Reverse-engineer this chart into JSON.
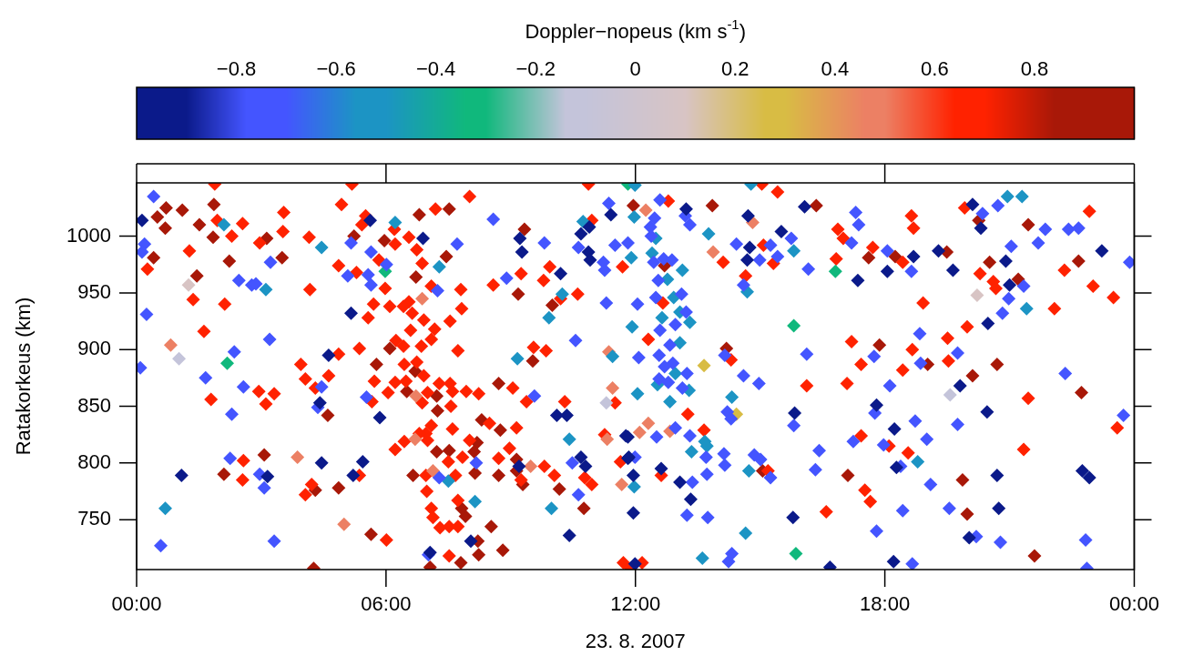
{
  "chart_data": {
    "type": "scatter",
    "xlabel": "23. 8. 2007",
    "ylabel": "Ratakorkeus (km)",
    "clabel": "Doppler−nopeus (km s$^{-1}$)",
    "xlim": [
      0,
      24
    ],
    "xticks": [
      {
        "value": 0,
        "label": "00:00"
      },
      {
        "value": 6,
        "label": "06:00"
      },
      {
        "value": 12,
        "label": "12:00"
      },
      {
        "value": 18,
        "label": "18:00"
      },
      {
        "value": 24,
        "label": "00:00"
      }
    ],
    "ylim": [
      706,
      1047
    ],
    "yticks": [
      750,
      800,
      850,
      900,
      950,
      1000
    ],
    "clim": [
      -1,
      1
    ],
    "cticks": [
      {
        "value": -0.8,
        "label": "−0.8"
      },
      {
        "value": -0.6,
        "label": "−0.6"
      },
      {
        "value": -0.4,
        "label": "−0.4"
      },
      {
        "value": -0.2,
        "label": "−0.2"
      },
      {
        "value": 0,
        "label": "0"
      },
      {
        "value": 0.2,
        "label": "0.2"
      },
      {
        "value": 0.4,
        "label": "0.4"
      },
      {
        "value": 0.6,
        "label": "0.6"
      },
      {
        "value": 0.8,
        "label": "0.8"
      }
    ],
    "marker": "diamond",
    "series": [
      {
        "x": [
          0.13,
          1.08,
          3.15,
          5.62,
          6.89,
          5.16,
          4.62,
          4.41,
          5.85,
          4.45,
          5.44,
          5.21,
          7.06,
          9.22,
          9.27,
          10.2,
          10.89,
          10.69,
          10.87,
          10.91,
          11.41,
          10.11,
          10.35,
          11.77,
          9.2,
          10.69,
          10.8,
          11.82,
          8.04,
          10.41,
          13.22,
          14.71,
          15.51,
          14.75,
          14.69,
          15.83,
          11.82,
          11.84,
          12.62,
          11.95,
          13.07,
          13.33,
          11.95,
          15.79,
          11.99,
          16.07,
          18.69,
          19.29,
          19.64,
          17.35,
          18.06,
          19.81,
          17.8,
          18.23,
          18.28,
          18.21,
          16.68,
          20.11,
          20.31,
          23.22,
          20.91,
          21.0,
          20.48,
          20.46,
          20.7,
          22.75,
          22.92,
          20.74,
          20.03
        ],
        "values": [
          1014,
          789,
          788,
          1014,
          998,
          932,
          895,
          853,
          840,
          800,
          801,
          789,
          721,
          998,
          986,
          967,
          1008,
          1002,
          986,
          979,
          1019,
          842,
          842,
          824,
          797,
          805,
          797,
          804,
          731,
          736,
          1024,
          1018,
          1004,
          990,
          979,
          844,
          823,
          805,
          795,
          789,
          783,
          768,
          756,
          752,
          711,
          1026,
          982,
          987,
          970,
          961,
          969,
          868,
          851,
          830,
          796,
          713,
          708,
          1028,
          1007,
          987,
          978,
          957,
          923,
          845,
          789,
          793,
          787,
          760,
          734
        ],
        "cvalues": [
          -0.9,
          -0.9,
          -0.9,
          -0.9,
          -0.9,
          -0.9,
          -0.9,
          -0.9,
          -0.9,
          -0.9,
          -0.9,
          -0.9,
          -0.9,
          -0.9,
          -0.9,
          -0.9,
          -0.9,
          -0.9,
          -0.9,
          -0.9,
          -0.9,
          -0.9,
          -0.9,
          -0.9,
          -0.9,
          -0.9,
          -0.9,
          -0.9,
          -0.9,
          -0.9,
          -0.9,
          -0.9,
          -0.9,
          -0.9,
          -0.9,
          -0.9,
          -0.9,
          -0.9,
          -0.9,
          -0.9,
          -0.9,
          -0.9,
          -0.9,
          -0.9,
          -0.9,
          -0.9,
          -0.9,
          -0.9,
          -0.9,
          -0.9,
          -0.9,
          -0.9,
          -0.9,
          -0.9,
          -0.9,
          -0.9,
          -0.9,
          -0.9,
          -0.9,
          -0.9,
          -0.9,
          -0.9,
          -0.9,
          -0.9,
          -0.9,
          -0.9,
          -0.9,
          -0.9,
          -0.9
        ]
      },
      {
        "x": [
          0.41,
          0.19,
          0.13,
          3.22,
          2.46,
          2.77,
          2.87,
          0.24,
          3.2,
          2.35,
          0.09,
          1.66,
          2.57,
          2.29,
          2.25,
          2.96,
          3.07,
          0.58,
          3.31,
          5.16,
          7.71,
          5.64,
          6.01,
          5.08,
          5.57,
          5.64,
          7.24,
          4.45,
          4.36,
          5.53,
          7.28,
          7.02,
          8.58,
          9.81,
          8.9,
          10.63,
          11.23,
          11.26,
          11.36,
          11.51,
          11.82,
          11.3,
          10.56,
          9.57,
          8.17,
          10.48,
          10.63,
          12.59,
          12.46,
          13.2,
          13.31,
          12.36,
          12.38,
          15.75,
          14.43,
          14.99,
          15.25,
          15.42,
          14.6,
          12.44,
          12.68,
          12.88,
          12.55,
          12.49,
          13.11,
          12.05,
          13.22,
          12.96,
          12.59,
          12.83,
          12.57,
          12.08,
          12.7,
          12.9,
          13.24,
          12.57,
          12.79,
          13.13,
          14.15,
          14.6,
          14.97,
          14.21,
          14.3,
          15.81,
          12.51,
          12.96,
          13.31,
          13.7,
          14.13,
          14.15,
          14.86,
          15.01,
          15.25,
          11.99,
          13.37,
          13.72,
          13.24,
          13.74,
          14.24,
          14.32,
          17.3,
          17.37,
          17.2,
          18.06,
          16.16,
          18.64,
          18.84,
          16.12,
          17.74,
          18.86,
          19.75,
          18.12,
          17.76,
          18.73,
          19.75,
          17.24,
          17.97,
          19.01,
          16.42,
          16.33,
          18.38,
          19.1,
          18.43,
          19.55,
          17.8,
          18.66,
          20.35,
          20.72,
          21.86,
          22.42,
          22.66,
          21.04,
          21.69,
          23.89,
          21.34,
          20.98,
          20.83,
          22.34,
          23.74,
          20.2,
          20.78,
          22.83,
          22.86
        ],
        "values": [
          1035,
          993,
          986,
          977,
          961,
          957,
          958,
          931,
          909,
          898,
          884,
          875,
          867,
          843,
          804,
          790,
          778,
          727,
          731,
          994,
          993,
          986,
          975,
          965,
          966,
          957,
          952,
          867,
          849,
          858,
          787,
          719,
          1015,
          994,
          963,
          990,
          977,
          970,
          1029,
          992,
          994,
          941,
          908,
          859,
          800,
          800,
          772,
          1032,
          1016,
          1018,
          1010,
          1008,
          1000,
          998,
          993,
          979,
          992,
          982,
          957,
          977,
          980,
          979,
          961,
          946,
          949,
          940,
          933,
          922,
          917,
          904,
          895,
          893,
          885,
          888,
          879,
          874,
          871,
          866,
          895,
          877,
          870,
          845,
          839,
          833,
          823,
          831,
          824,
          805,
          808,
          798,
          807,
          803,
          787,
          805,
          783,
          790,
          754,
          752,
          713,
          720,
          1021,
          1010,
          994,
          987,
          971,
          969,
          914,
          896,
          894,
          888,
          897,
          868,
          844,
          837,
          834,
          819,
          816,
          821,
          811,
          794,
          797,
          781,
          758,
          760,
          740,
          711,
          1020,
          1027,
          1006,
          1006,
          1007,
          991,
          994,
          977,
          956,
          945,
          932,
          879,
          842,
          735,
          730,
          732,
          707
        ],
        "cvalues": [
          -0.7,
          -0.7,
          -0.7,
          -0.7,
          -0.7,
          -0.7,
          -0.7,
          -0.7,
          -0.7,
          -0.7,
          -0.7,
          -0.7,
          -0.7,
          -0.7,
          -0.7,
          -0.7,
          -0.7,
          -0.7,
          -0.7,
          -0.7,
          -0.7,
          -0.7,
          -0.7,
          -0.7,
          -0.7,
          -0.7,
          -0.7,
          -0.7,
          -0.7,
          -0.7,
          -0.7,
          -0.7,
          -0.7,
          -0.7,
          -0.7,
          -0.7,
          -0.7,
          -0.7,
          -0.7,
          -0.7,
          -0.7,
          -0.7,
          -0.7,
          -0.7,
          -0.7,
          -0.7,
          -0.7,
          -0.7,
          -0.7,
          -0.7,
          -0.7,
          -0.7,
          -0.7,
          -0.7,
          -0.7,
          -0.7,
          -0.7,
          -0.7,
          -0.7,
          -0.7,
          -0.7,
          -0.7,
          -0.7,
          -0.7,
          -0.7,
          -0.7,
          -0.7,
          -0.7,
          -0.7,
          -0.7,
          -0.7,
          -0.7,
          -0.7,
          -0.7,
          -0.7,
          -0.7,
          -0.7,
          -0.7,
          -0.7,
          -0.7,
          -0.7,
          -0.7,
          -0.7,
          -0.7,
          -0.7,
          -0.7,
          -0.7,
          -0.7,
          -0.7,
          -0.7,
          -0.7,
          -0.7,
          -0.7,
          -0.7,
          -0.7,
          -0.7,
          -0.7,
          -0.7,
          -0.7,
          -0.7,
          -0.7,
          -0.7,
          -0.7,
          -0.7,
          -0.7,
          -0.7,
          -0.7,
          -0.7,
          -0.7,
          -0.7,
          -0.7,
          -0.7,
          -0.7,
          -0.7,
          -0.7,
          -0.7,
          -0.7,
          -0.7,
          -0.7,
          -0.7,
          -0.7,
          -0.7,
          -0.7,
          -0.7,
          -0.7,
          -0.7,
          -0.7,
          -0.7,
          -0.7,
          -0.7,
          -0.7,
          -0.7,
          -0.7,
          -0.7,
          -0.7,
          -0.7,
          -0.7,
          -0.7,
          -0.7,
          -0.7,
          -0.7,
          -0.7,
          -0.7
        ]
      },
      {
        "x": [
          2.1,
          3.11,
          0.69,
          6.22,
          4.45,
          7.28,
          7.5,
          10.24,
          9.92,
          10.74,
          9.16,
          11.45,
          10.41,
          8.14,
          9.98,
          11.99,
          14.78,
          11.97,
          12.49,
          13.76,
          15.81,
          14.69,
          11.9,
          12.4,
          13.13,
          12.77,
          12.92,
          13.07,
          12.64,
          13.31,
          11.92,
          13.07,
          12.96,
          12.53,
          13.29,
          12.83,
          12.05,
          14.32,
          13.67,
          13.72,
          13.35,
          14.73,
          11.97,
          14.65,
          13.61,
          18.79,
          20.95,
          21.3,
          21.41
        ],
        "values": [
          1010,
          953,
          760,
          1012,
          990,
          973,
          784,
          949,
          928,
          1013,
          892,
          894,
          821,
          766,
          760,
          1045,
          1046,
          1017,
          998,
          1002,
          987,
          951,
          981,
          985,
          970,
          962,
          946,
          933,
          928,
          924,
          920,
          906,
          879,
          869,
          864,
          854,
          861,
          858,
          819,
          815,
          810,
          793,
          779,
          738,
          716,
          801,
          1035,
          1035,
          936
        ],
        "cvalues": [
          -0.5,
          -0.5,
          -0.5,
          -0.5,
          -0.5,
          -0.5,
          -0.5,
          -0.5,
          -0.5,
          -0.5,
          -0.5,
          -0.5,
          -0.5,
          -0.5,
          -0.5,
          -0.5,
          -0.5,
          -0.5,
          -0.5,
          -0.5,
          -0.5,
          -0.5,
          -0.5,
          -0.5,
          -0.5,
          -0.5,
          -0.5,
          -0.5,
          -0.5,
          -0.5,
          -0.5,
          -0.5,
          -0.5,
          -0.5,
          -0.5,
          -0.5,
          -0.5,
          -0.5,
          -0.5,
          -0.5,
          -0.5,
          -0.5,
          -0.5,
          -0.5,
          -0.5,
          -0.5,
          -0.5,
          -0.5,
          -0.5
        ]
      },
      {
        "x": [
          2.18,
          5.98,
          11.82,
          15.86,
          16.81,
          15.81
        ],
        "values": [
          888,
          969,
          1046,
          720,
          969,
          921
        ],
        "cvalues": [
          -0.3,
          -0.3,
          -0.3,
          -0.3,
          -0.3,
          -0.3
        ]
      },
      {
        "x": [
          1.02,
          11.3,
          19.57
        ],
        "values": [
          892,
          853,
          860
        ],
        "cvalues": [
          -0.1,
          -0.1,
          -0.1
        ]
      },
      {
        "x": [
          1.25,
          20.22
        ],
        "values": [
          957,
          948
        ],
        "cvalues": [
          0.1,
          0.1
        ]
      },
      {
        "x": [
          13.65,
          14.43
        ],
        "values": [
          886,
          843
        ],
        "cvalues": [
          0.3,
          0.3
        ]
      },
      {
        "x": [
          0.82,
          3.87,
          6.87,
          6.72,
          6.7,
          7.13,
          4.99,
          11.36,
          11.45,
          11.32,
          9.48,
          11.67,
          12.25,
          14.82,
          13.87,
          12.31,
          12.1,
          12.83
        ],
        "values": [
          904,
          805,
          945,
          859,
          821,
          793,
          746,
          898,
          866,
          821,
          797,
          781,
          1023,
          1012,
          986,
          835,
          827,
          828
        ],
        "cvalues": [
          0.5,
          0.5,
          0.5,
          0.5,
          0.5,
          0.5,
          0.5,
          0.5,
          0.5,
          0.5,
          0.5,
          0.5,
          0.5,
          0.5,
          0.5,
          0.5,
          0.5,
          0.5
        ]
      },
      {
        "x": [
          1.88,
          1.94,
          2.55,
          2.29,
          3.54,
          3.52,
          2.96,
          0.26,
          1.27,
          1.36,
          2.12,
          1.62,
          2.94,
          3.31,
          3.11,
          1.79,
          2.57,
          2.55
        ],
        "values": [
          1046,
          1014,
          1011,
          1000,
          1021,
          1004,
          994,
          971,
          987,
          944,
          940,
          916,
          863,
          861,
          852,
          856,
          802,
          785
        ],
        "cvalues": [
          0.7,
          0.7,
          0.7,
          0.7,
          0.7,
          0.7,
          0.7,
          0.7,
          0.7,
          0.7,
          0.7,
          0.7,
          0.7,
          0.7,
          0.7,
          0.7,
          0.7,
          0.7
        ]
      },
      {
        "x": [
          5.18,
          4.93,
          5.51,
          5.42,
          6.2,
          4.15,
          6.22,
          6.55,
          7.19,
          6.74,
          5.83,
          4.86,
          5.29,
          6.87,
          5.98,
          7.09,
          7.8,
          4.17,
          6.55,
          6.42,
          6.63,
          5.7,
          6.09,
          5.57,
          6.91,
          7.54,
          7.82,
          6.59,
          7.17,
          7.09,
          6.24,
          6.42,
          6.85,
          7.73,
          5.36,
          4.86,
          3.95,
          6.44,
          6.74,
          6.91,
          4.06,
          4.3,
          4.62,
          5.72,
          6.22,
          6.48,
          6.05,
          6.87,
          7.0,
          7.28,
          7.54,
          7.6,
          7.93,
          7.56,
          5.66,
          7.09,
          7.6,
          6.96,
          6.8,
          7.0,
          6.44,
          6.22,
          7.5,
          7.84,
          5.36,
          6.96,
          7.67,
          4.21,
          4.06,
          6.98,
          7.09,
          7.13,
          7.73,
          7.3,
          7.52,
          7.73,
          6.01,
          7.52
        ],
        "values": [
          1046,
          1028,
          1018,
          1010,
          1006,
          999,
          993,
          999,
          1024,
          988,
          979,
          974,
          968,
          976,
          954,
          956,
          953,
          953,
          942,
          938,
          932,
          940,
          938,
          928,
          926,
          925,
          936,
          917,
          918,
          909,
          908,
          903,
          903,
          899,
          901,
          896,
          887,
          887,
          889,
          877,
          874,
          866,
          877,
          872,
          871,
          872,
          862,
          853,
          862,
          870,
          870,
          863,
          863,
          850,
          854,
          833,
          830,
          826,
          826,
          820,
          819,
          812,
          801,
          805,
          789,
          789,
          789,
          781,
          772,
          775,
          760,
          752,
          767,
          743,
          744,
          744,
          732,
          718
        ],
        "cvalues": [
          0.7,
          0.7,
          0.7,
          0.7,
          0.7,
          0.7,
          0.7,
          0.7,
          0.7,
          0.7,
          0.7,
          0.7,
          0.7,
          0.7,
          0.7,
          0.7,
          0.7,
          0.7,
          0.7,
          0.7,
          0.7,
          0.7,
          0.7,
          0.7,
          0.7,
          0.7,
          0.7,
          0.7,
          0.7,
          0.7,
          0.7,
          0.7,
          0.7,
          0.7,
          0.7,
          0.7,
          0.7,
          0.7,
          0.7,
          0.7,
          0.7,
          0.7,
          0.7,
          0.7,
          0.7,
          0.7,
          0.7,
          0.7,
          0.7,
          0.7,
          0.7,
          0.7,
          0.7,
          0.7,
          0.7,
          0.7,
          0.7,
          0.7,
          0.7,
          0.7,
          0.7,
          0.7,
          0.7,
          0.7,
          0.7,
          0.7,
          0.7,
          0.7,
          0.7,
          0.7,
          0.7,
          0.7,
          0.7,
          0.7,
          0.7,
          0.7,
          0.7,
          0.7
        ]
      },
      {
        "x": [
          8.01,
          9.94,
          9.79,
          9.25,
          8.58,
          10.2,
          10.61,
          10.87,
          10.95,
          11.69,
          9.55,
          9.85,
          9.05,
          8.23,
          9.38,
          10.3,
          11.51,
          8.49,
          9.14,
          11.26,
          8.01,
          8.97,
          8.71,
          9.25,
          9.81,
          10.05,
          10.78,
          10.95,
          11.64,
          11.71,
          11.88
        ],
        "values": [
          1035,
          973,
          961,
          967,
          957,
          945,
          949,
          1046,
          1014,
          973,
          902,
          899,
          866,
          861,
          854,
          854,
          853,
          835,
          831,
          825,
          820,
          813,
          804,
          785,
          797,
          789,
          787,
          781,
          801,
          712,
          707
        ],
        "cvalues": [
          0.7,
          0.7,
          0.7,
          0.7,
          0.7,
          0.7,
          0.7,
          0.7,
          0.7,
          0.7,
          0.7,
          0.7,
          0.7,
          0.7,
          0.7,
          0.7,
          0.7,
          0.7,
          0.7,
          0.7,
          0.7,
          0.7,
          0.7,
          0.7,
          0.7,
          0.7,
          0.7,
          0.7,
          0.7,
          0.7,
          0.7
        ]
      },
      {
        "x": [
          15.04,
          15.42,
          12.79,
          15.08,
          15.32,
          14.11,
          14.65,
          12.66,
          12.31,
          14.3,
          13.26,
          13.65,
          15.19,
          12.62,
          12.16,
          16.87,
          17.0,
          18.64,
          18.69,
          17.71,
          18.43,
          16.83,
          19.92,
          18.92,
          17.2,
          19.51,
          17.43,
          18.66,
          18.43,
          19.53,
          16.12,
          17.09,
          17.43,
          18.1,
          18.56,
          17.52,
          17.65,
          16.59,
          20.29,
          20.61,
          20.67,
          19.98,
          22.08,
          22.32,
          23.01,
          23.5,
          21.45,
          23.59,
          21.34,
          22.92
        ],
        "values": [
          1046,
          1039,
          1031,
          992,
          976,
          977,
          965,
          941,
          909,
          891,
          843,
          829,
          793,
          789,
          712,
          1006,
          998,
          1018,
          1007,
          990,
          977,
          980,
          1025,
          941,
          907,
          910,
          887,
          900,
          882,
          890,
          868,
          870,
          824,
          815,
          809,
          776,
          766,
          757,
          967,
          960,
          954,
          920,
          936,
          970,
          956,
          946,
          857,
          831,
          812,
          1022
        ],
        "cvalues": [
          0.7,
          0.7,
          0.7,
          0.7,
          0.7,
          0.7,
          0.7,
          0.7,
          0.7,
          0.7,
          0.7,
          0.7,
          0.7,
          0.7,
          0.7,
          0.7,
          0.7,
          0.7,
          0.7,
          0.7,
          0.7,
          0.7,
          0.7,
          0.7,
          0.7,
          0.7,
          0.7,
          0.7,
          0.7,
          0.7,
          0.7,
          0.7,
          0.7,
          0.7,
          0.7,
          0.7,
          0.7,
          0.7,
          0.7,
          0.7,
          0.7,
          0.7,
          0.7,
          0.7,
          0.7,
          0.7,
          0.7,
          0.7,
          0.7,
          0.7
        ]
      },
      {
        "x": [
          0.5,
          0.69,
          0.71,
          1.1,
          1.86,
          1.51,
          1.84,
          3.13,
          0.41,
          2.23,
          3.5,
          1.45,
          3.07,
          2.1,
          5.23,
          5.96,
          7.52,
          6.8,
          7.45,
          6.72,
          6.09,
          5.77,
          6.7,
          6.5,
          7.22,
          7.24,
          4.6,
          7.22,
          7.52,
          6.65,
          4.3,
          4.86,
          7.82,
          5.64,
          7.8,
          7.06,
          4.26
        ],
        "values": [
          1017,
          1007,
          1025,
          1023,
          1028,
          1010,
          999,
          998,
          981,
          978,
          981,
          965,
          807,
          790,
          1000,
          996,
          1024,
          1019,
          982,
          964,
          901,
          887,
          881,
          863,
          859,
          846,
          842,
          810,
          811,
          789,
          776,
          778,
          760,
          737,
          712,
          708,
          707
        ],
        "cvalues": [
          0.9,
          0.9,
          0.9,
          0.9,
          0.9,
          0.9,
          0.9,
          0.9,
          0.9,
          0.9,
          0.9,
          0.9,
          0.9,
          0.9,
          0.9,
          0.9,
          0.9,
          0.9,
          0.9,
          0.9,
          0.9,
          0.9,
          0.9,
          0.9,
          0.9,
          0.9,
          0.9,
          0.9,
          0.9,
          0.9,
          0.9,
          0.9,
          0.9,
          0.9,
          0.9,
          0.9,
          0.9
        ]
      },
      {
        "x": [
          9.33,
          9.18,
          10.0,
          9.53,
          8.71,
          8.3,
          8.75,
          8.19,
          8.12,
          9.14,
          8.14,
          8.71,
          9.14,
          9.29,
          10.17,
          10.76,
          7.91,
          8.53,
          8.21,
          8.23,
          8.81,
          11.95,
          13.85,
          12.7,
          14.19,
          15.06,
          16.35,
          17.61,
          18.25,
          19.49,
          17.87,
          19.03,
          17.11,
          19.87,
          20.26,
          21.45,
          20.52,
          21.21,
          22.66,
          20.7,
          20.11,
          22.73,
          19.98,
          21.6
        ],
        "values": [
          1006,
          949,
          939,
          890,
          870,
          838,
          829,
          818,
          810,
          803,
          791,
          789,
          793,
          781,
          777,
          760,
          753,
          744,
          731,
          719,
          723,
          1027,
          1027,
          974,
          901,
          793,
          1027,
          981,
          982,
          986,
          904,
          887,
          789,
          785,
          1014,
          1010,
          977,
          962,
          978,
          887,
          877,
          862,
          755,
          718
        ],
        "cvalues": [
          0.9,
          0.9,
          0.9,
          0.9,
          0.9,
          0.9,
          0.9,
          0.9,
          0.9,
          0.9,
          0.9,
          0.9,
          0.9,
          0.9,
          0.9,
          0.9,
          0.9,
          0.9,
          0.9,
          0.9,
          0.9,
          0.9,
          0.9,
          0.9,
          0.9,
          0.9,
          0.9,
          0.9,
          0.9,
          0.9,
          0.9,
          0.9,
          0.9,
          0.9,
          0.9,
          0.9,
          0.9,
          0.9,
          0.9,
          0.9,
          0.9,
          0.9,
          0.9,
          0.9
        ]
      }
    ]
  }
}
